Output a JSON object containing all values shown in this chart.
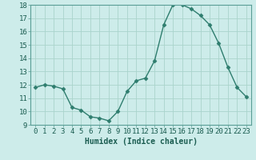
{
  "x": [
    0,
    1,
    2,
    3,
    4,
    5,
    6,
    7,
    8,
    9,
    10,
    11,
    12,
    13,
    14,
    15,
    16,
    17,
    18,
    19,
    20,
    21,
    22,
    23
  ],
  "y": [
    11.8,
    12.0,
    11.9,
    11.7,
    10.3,
    10.1,
    9.6,
    9.5,
    9.3,
    10.0,
    11.5,
    12.3,
    12.5,
    13.8,
    16.5,
    18.0,
    18.0,
    17.7,
    17.2,
    16.5,
    15.1,
    13.3,
    11.8,
    11.1
  ],
  "line_color": "#2e7d6e",
  "marker_color": "#2e7d6e",
  "bg_color": "#cdecea",
  "grid_color": "#aad4cc",
  "xlabel": "Humidex (Indice chaleur)",
  "ylim": [
    9,
    18
  ],
  "xlim_min": -0.5,
  "xlim_max": 23.5,
  "yticks": [
    9,
    10,
    11,
    12,
    13,
    14,
    15,
    16,
    17,
    18
  ],
  "xticks": [
    0,
    1,
    2,
    3,
    4,
    5,
    6,
    7,
    8,
    9,
    10,
    11,
    12,
    13,
    14,
    15,
    16,
    17,
    18,
    19,
    20,
    21,
    22,
    23
  ],
  "xtick_labels": [
    "0",
    "1",
    "2",
    "3",
    "4",
    "5",
    "6",
    "7",
    "8",
    "9",
    "10",
    "11",
    "12",
    "13",
    "14",
    "15",
    "16",
    "17",
    "18",
    "19",
    "20",
    "21",
    "22",
    "23"
  ],
  "xlabel_fontsize": 7,
  "tick_fontsize": 6.5,
  "marker_size": 2.5,
  "line_width": 1.0
}
